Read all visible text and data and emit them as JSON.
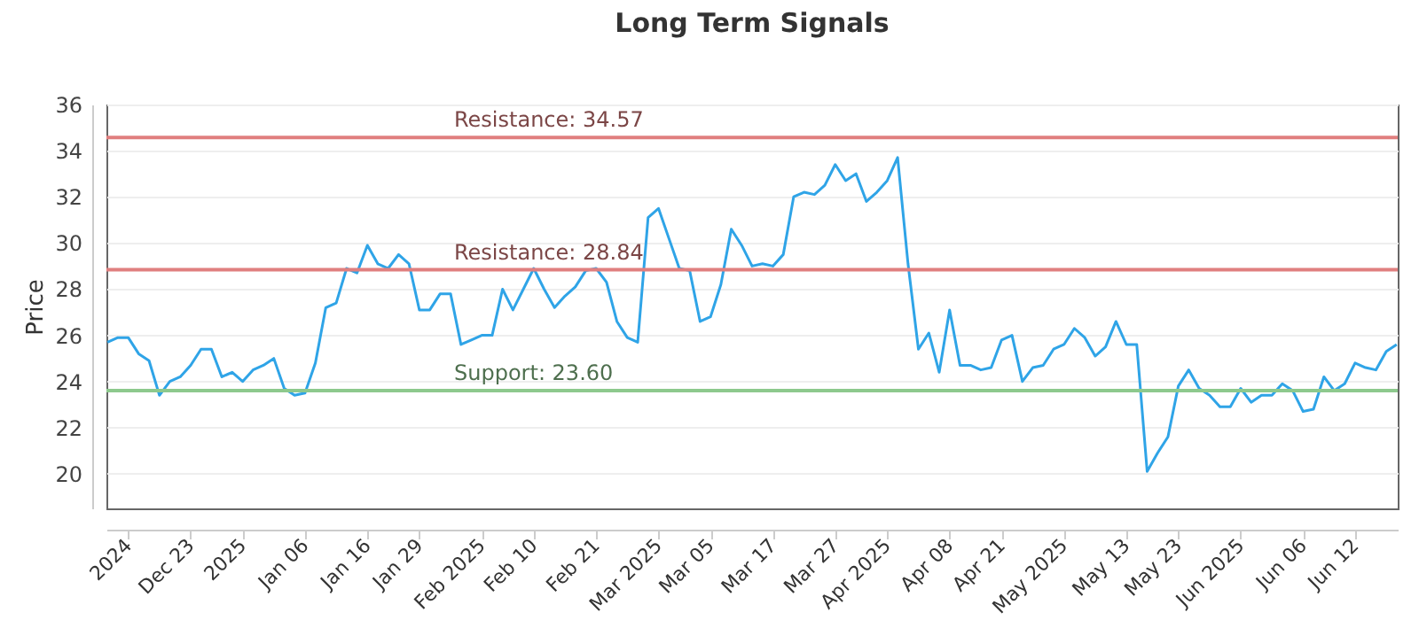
{
  "chart_data": {
    "type": "line",
    "title": "Long Term Signals",
    "ylabel": "Price",
    "categories": [
      null,
      null,
      "2024",
      null,
      null,
      null,
      null,
      null,
      "Dec 23",
      null,
      null,
      null,
      null,
      "2025",
      null,
      null,
      null,
      null,
      null,
      "Jan 06",
      null,
      null,
      null,
      null,
      null,
      "Jan 16",
      null,
      null,
      null,
      null,
      "Jan 29",
      null,
      null,
      null,
      null,
      null,
      "Feb 2025",
      null,
      null,
      null,
      null,
      "Feb 10",
      null,
      null,
      null,
      null,
      null,
      "Feb 21",
      null,
      null,
      null,
      null,
      null,
      "Mar 2025",
      null,
      null,
      null,
      null,
      "Mar 05",
      null,
      null,
      null,
      null,
      null,
      "Mar 17",
      null,
      null,
      null,
      null,
      null,
      "Mar 27",
      null,
      null,
      null,
      null,
      "Apr 2025",
      null,
      null,
      null,
      null,
      null,
      "Apr 08",
      null,
      null,
      null,
      null,
      "Apr 21",
      null,
      null,
      null,
      null,
      null,
      "May 2025",
      null,
      null,
      null,
      null,
      null,
      "May 13",
      null,
      null,
      null,
      null,
      "May 23",
      null,
      null,
      null,
      null,
      null,
      "Jun 2025",
      null,
      null,
      null,
      null,
      null,
      "Jun 06",
      null,
      null,
      null,
      null,
      "Jun 12",
      null,
      null,
      null,
      null
    ],
    "series": [
      {
        "color": "#2fa4e7",
        "values": [
          25.7,
          25.9,
          25.9,
          25.2,
          24.9,
          23.4,
          24.0,
          24.2,
          24.7,
          25.4,
          25.4,
          24.2,
          24.4,
          24.0,
          24.5,
          24.7,
          25.0,
          23.7,
          23.4,
          23.5,
          24.8,
          27.2,
          27.4,
          28.9,
          28.7,
          29.9,
          29.1,
          28.9,
          29.5,
          29.1,
          27.1,
          27.1,
          27.8,
          27.8,
          25.6,
          25.8,
          26.0,
          26.0,
          28.0,
          27.1,
          28.0,
          28.9,
          28.0,
          27.2,
          27.7,
          28.1,
          28.8,
          28.9,
          28.3,
          26.6,
          25.9,
          25.7,
          31.1,
          31.5,
          30.2,
          28.9,
          28.8,
          26.6,
          26.8,
          28.2,
          30.6,
          29.9,
          29.0,
          29.1,
          29.0,
          29.5,
          32.0,
          32.2,
          32.1,
          32.5,
          33.4,
          32.7,
          33.0,
          31.8,
          32.2,
          32.7,
          33.7,
          29.1,
          25.4,
          26.1,
          24.4,
          27.1,
          24.7,
          24.7,
          24.5,
          24.6,
          25.8,
          26.0,
          24.0,
          24.6,
          24.7,
          25.4,
          25.6,
          26.3,
          25.9,
          25.1,
          25.5,
          26.6,
          25.6,
          25.6,
          20.1,
          20.9,
          21.6,
          23.8,
          24.5,
          23.7,
          23.4,
          22.9,
          22.9,
          23.7,
          23.1,
          23.4,
          23.4,
          23.9,
          23.6,
          22.7,
          22.8,
          24.2,
          23.6,
          23.9,
          24.8,
          24.6,
          24.5,
          25.3,
          25.6
        ]
      }
    ],
    "ylim": [
      18.5,
      36
    ],
    "yticks": [
      20,
      22,
      24,
      26,
      28,
      30,
      32,
      34,
      36
    ],
    "grid": "y",
    "ref_lines": [
      {
        "axis": "y",
        "value": 34.57,
        "label": "Resistance: 34.57",
        "color": "#e07f7f"
      },
      {
        "axis": "y",
        "value": 28.84,
        "label": "Resistance: 28.84",
        "color": "#e07f7f"
      },
      {
        "axis": "y",
        "value": 23.6,
        "label": "Support: 23.60",
        "color": "#8dc98d"
      }
    ]
  }
}
